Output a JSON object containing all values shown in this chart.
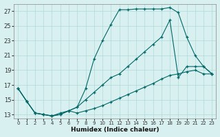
{
  "xlabel": "Humidex (Indice chaleur)",
  "bg_color": "#d8f0f0",
  "grid_color": "#b0d8d8",
  "line_color": "#006666",
  "xlim": [
    -0.5,
    23.5
  ],
  "ylim": [
    12.5,
    28.0
  ],
  "xticks": [
    0,
    1,
    2,
    3,
    4,
    5,
    6,
    7,
    8,
    9,
    10,
    11,
    12,
    13,
    14,
    15,
    16,
    17,
    18,
    19,
    20,
    21,
    22,
    23
  ],
  "yticks": [
    13,
    15,
    17,
    19,
    21,
    23,
    25,
    27
  ],
  "line_top_x": [
    0,
    1,
    2,
    3,
    4,
    5,
    6,
    7,
    8,
    9,
    10,
    11,
    12,
    13,
    14,
    15,
    16,
    17,
    18,
    19,
    20,
    21,
    22,
    23
  ],
  "line_top_y": [
    16.5,
    14.8,
    13.2,
    13.0,
    12.8,
    13.0,
    13.5,
    14.0,
    16.5,
    20.5,
    23.0,
    25.2,
    27.2,
    27.2,
    27.3,
    27.3,
    27.3,
    27.3,
    27.5,
    26.8,
    23.5,
    21.0,
    19.5,
    18.5
  ],
  "line_mid_x": [
    0,
    1,
    2,
    3,
    4,
    5,
    6,
    7,
    8,
    9,
    10,
    11,
    12,
    13,
    14,
    15,
    16,
    17,
    18,
    19,
    20,
    21,
    22,
    23
  ],
  "line_mid_y": [
    16.5,
    14.8,
    13.2,
    13.0,
    12.8,
    13.0,
    13.5,
    14.0,
    15.0,
    16.0,
    17.0,
    18.0,
    18.5,
    19.5,
    20.5,
    21.5,
    22.5,
    23.5,
    25.8,
    18.0,
    19.5,
    19.5,
    19.5,
    18.5
  ],
  "line_bot_x": [
    0,
    1,
    2,
    3,
    4,
    5,
    6,
    7,
    8,
    9,
    10,
    11,
    12,
    13,
    14,
    15,
    16,
    17,
    18,
    19,
    20,
    21,
    22,
    23
  ],
  "line_bot_y": [
    16.5,
    14.8,
    13.2,
    13.0,
    12.8,
    13.2,
    13.5,
    13.2,
    13.5,
    13.8,
    14.2,
    14.7,
    15.2,
    15.7,
    16.2,
    16.7,
    17.2,
    17.8,
    18.3,
    18.5,
    18.8,
    19.0,
    18.5,
    18.5
  ]
}
